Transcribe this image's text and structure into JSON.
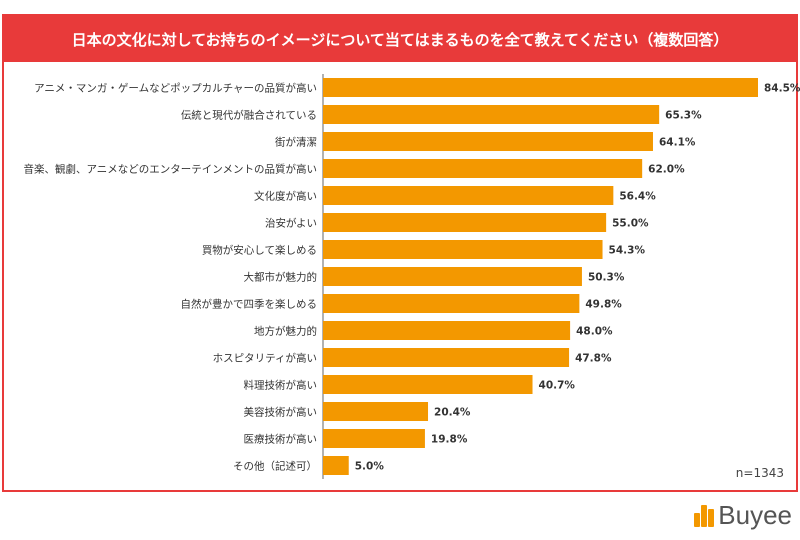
{
  "title": "日本の文化に対してお持ちのイメージについて当てはまるものを全て教えてください（複数回答）",
  "note": "n=1343",
  "logo_text": "Buyee",
  "colors": {
    "accent": "#e83a3a",
    "bar": "#f39800"
  },
  "chart_data": {
    "type": "bar",
    "orientation": "horizontal",
    "title": "日本の文化に対してお持ちのイメージについて当てはまるものを全て教えてください（複数回答）",
    "categories": [
      "アニメ・マンガ・ゲームなどポップカルチャーの品質が高い",
      "伝統と現代が融合されている",
      "街が清潔",
      "音楽、観劇、アニメなどのエンターテインメントの品質が高い",
      "文化度が高い",
      "治安がよい",
      "買物が安心して楽しめる",
      "大都市が魅力的",
      "自然が豊かで四季を楽しめる",
      "地方が魅力的",
      "ホスピタリティが高い",
      "料理技術が高い",
      "美容技術が高い",
      "医療技術が高い",
      "その他（記述可）"
    ],
    "values": [
      84.5,
      65.3,
      64.1,
      62.0,
      56.4,
      55.0,
      54.3,
      50.3,
      49.8,
      48.0,
      47.8,
      40.7,
      20.4,
      19.8,
      5.0
    ],
    "value_labels": [
      "84.5%",
      "65.3%",
      "64.1%",
      "62.0%",
      "56.4%",
      "55.0%",
      "54.3%",
      "50.3%",
      "49.8%",
      "48.0%",
      "47.8%",
      "40.7%",
      "20.4%",
      "19.8%",
      "5.0%"
    ],
    "xlim": [
      0,
      84.5
    ],
    "grid": false,
    "legend": "none"
  }
}
